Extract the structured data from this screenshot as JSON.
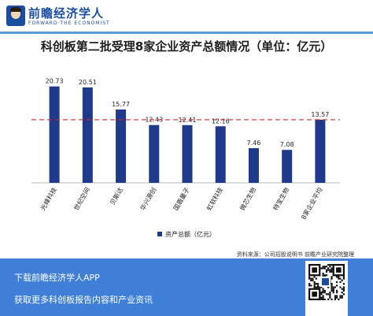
{
  "header": {
    "brand": "前瞻经济学人",
    "brand_sub": "FORWARD·THE ECONOMIST"
  },
  "chart_data": {
    "type": "bar",
    "title": "科创板第二批受理8家企业资产总额情况（单位：亿元）",
    "categories": [
      "光峰科技",
      "世纪空间",
      "贝斯达",
      "华兴源创",
      "国盾量子",
      "虹软科技",
      "微芯生物",
      "特宝生物",
      "8家企业平均"
    ],
    "series": [
      {
        "name": "资产总额（亿元）",
        "values": [
          20.73,
          20.51,
          15.77,
          12.43,
          12.41,
          12.16,
          7.46,
          7.08,
          13.57
        ],
        "color": "#1f3a8a"
      }
    ],
    "reference_line": {
      "value": 13.57,
      "style": "dashed",
      "color": "#d62728"
    },
    "ylim": [
      0,
      24
    ],
    "grid": false,
    "legend": "bottom-center",
    "source": "资料来源：公司招股说明书 前瞻产业研究院整理"
  },
  "footer": {
    "line1": "下载前瞻经济学人APP",
    "line2": "获取更多科创板报告内容和产业资讯"
  }
}
